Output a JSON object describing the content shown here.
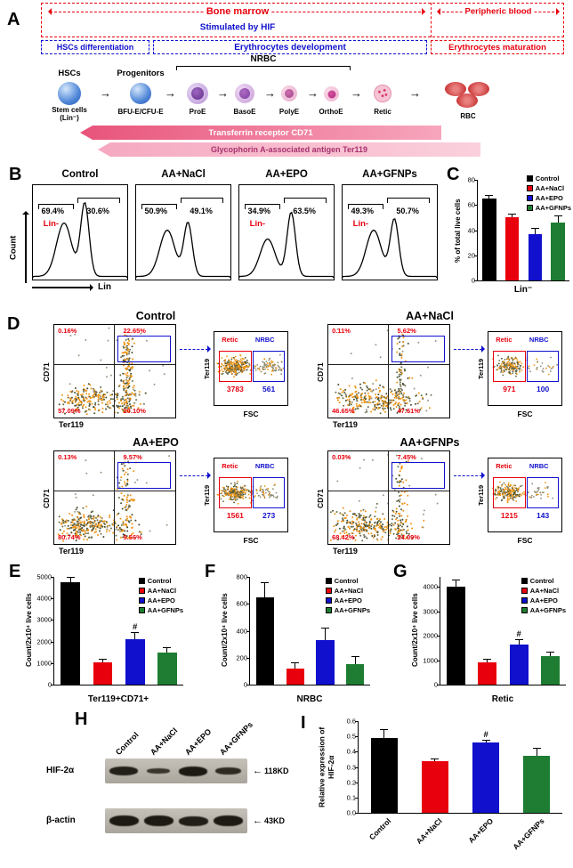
{
  "figure_groups": [
    {
      "name": "Control",
      "color": "#000000"
    },
    {
      "name": "AA+NaCl",
      "color": "#e8000d"
    },
    {
      "name": "AA+EPO",
      "color": "#1010cd"
    },
    {
      "name": "AA+GFNPs",
      "color": "#1e7d32"
    }
  ],
  "panelA": {
    "label": "A",
    "bone_marrow": "Bone marrow",
    "stimulated_by_hif": "Stimulated by HIF",
    "peripheric_blood": "Peripheric blood",
    "box1": "HSCs differentiation",
    "box2": "Erythrocytes development",
    "box3": "Erythrocytes maturation",
    "nrbc": "NRBC",
    "hscs": "HSCs",
    "progenitors": "Progenitors",
    "stem_line1": "Stem cells",
    "stem_line2": "(Lin⁻)",
    "bfu": "BFU-E/CFU-E",
    "proe": "ProE",
    "basoe": "BasoE",
    "polye": "PolyE",
    "orthoe": "OrthoE",
    "retic": "Retic",
    "rbc": "RBC",
    "cd71_arrow": "Transferrin receptor CD71",
    "ter119_arrow": "Glycophorin A-associated antigen Ter119"
  },
  "panelB": {
    "label": "B",
    "ylabel": "Count",
    "xlabel": "Lin",
    "plots": [
      {
        "title": "Control",
        "left_pct": "69.4%",
        "lin": "Lin-",
        "right_pct": "30.6%"
      },
      {
        "title": "AA+NaCl",
        "left_pct": "50.9%",
        "lin": "",
        "right_pct": "49.1%"
      },
      {
        "title": "AA+EPO",
        "left_pct": "34.9%",
        "lin": "Lin-",
        "right_pct": "63.5%"
      },
      {
        "title": "AA+GFNPs",
        "left_pct": "49.3%",
        "lin": "Lin-",
        "right_pct": "50.7%"
      }
    ]
  },
  "panelC": {
    "label": "C"
  },
  "panelD": {
    "label": "D",
    "main_x": "Ter119",
    "main_y": "CD71",
    "inset_x": "FSC",
    "inset_y": "Ter119",
    "retic": "Retic",
    "nrbc": "NRBC",
    "plots": [
      {
        "title": "Control",
        "tl": "0.16%",
        "tr": "22.65%",
        "bl": "57.09%",
        "br": "20.10%",
        "retic_count": "3783",
        "nrbc_count": "561"
      },
      {
        "title": "AA+NaCl",
        "tl": "0.11%",
        "tr": "5.62%",
        "bl": "46.65%",
        "br": "47.61%",
        "retic_count": "971",
        "nrbc_count": "100"
      },
      {
        "title": "AA+EPO",
        "tl": "0.13%",
        "tr": "9.57%",
        "bl": "80.74%",
        "br": "9.56%",
        "retic_count": "1561",
        "nrbc_count": "273"
      },
      {
        "title": "AA+GFNPs",
        "tl": "0.03%",
        "tr": "7.45%",
        "bl": "68.42%",
        "br": "24.09%",
        "retic_count": "1215",
        "nrbc_count": "143"
      }
    ]
  },
  "panelE": {
    "label": "E"
  },
  "panelF": {
    "label": "F"
  },
  "panelG": {
    "label": "G"
  },
  "panelH": {
    "label": "H",
    "rows": [
      {
        "protein": "HIF-2α",
        "kd": "118KD"
      },
      {
        "protein": "β-actin",
        "kd": "43KD"
      }
    ]
  },
  "panelI": {
    "label": "I"
  },
  "chart_data": [
    {
      "id": "C",
      "type": "bar",
      "categories": [
        "Lin⁻"
      ],
      "series": [
        {
          "name": "Control",
          "values": [
            65
          ],
          "errors": [
            3
          ]
        },
        {
          "name": "AA+NaCl",
          "values": [
            50
          ],
          "errors": [
            3
          ]
        },
        {
          "name": "AA+EPO",
          "values": [
            37
          ],
          "errors": [
            5
          ]
        },
        {
          "name": "AA+GFNPs",
          "values": [
            46
          ],
          "errors": [
            6
          ]
        }
      ],
      "ylabel": "% of total live cells",
      "ylim": [
        0,
        80
      ],
      "yticks": [
        0,
        20,
        40,
        60,
        80
      ],
      "ytick_labels": [
        "0",
        "20",
        "40",
        "60",
        "80"
      ],
      "legend": true,
      "hash_series": []
    },
    {
      "id": "E",
      "type": "bar",
      "categories": [
        "Ter119+CD71+"
      ],
      "series": [
        {
          "name": "Control",
          "values": [
            4750
          ],
          "errors": [
            250
          ]
        },
        {
          "name": "AA+NaCl",
          "values": [
            1050
          ],
          "errors": [
            150
          ]
        },
        {
          "name": "AA+EPO",
          "values": [
            2100
          ],
          "errors": [
            350
          ]
        },
        {
          "name": "AA+GFNPs",
          "values": [
            1500
          ],
          "errors": [
            250
          ]
        }
      ],
      "ylabel": "Count/2x10⁴ live cells",
      "ylim": [
        0,
        5000
      ],
      "yticks": [
        0,
        1000,
        2000,
        3000,
        4000,
        5000
      ],
      "ytick_labels": [
        "0",
        "1000",
        "2000",
        "3000",
        "4000",
        "5000"
      ],
      "legend": true,
      "hash_series": [
        2
      ]
    },
    {
      "id": "F",
      "type": "bar",
      "categories": [
        "NRBC"
      ],
      "series": [
        {
          "name": "Control",
          "values": [
            650
          ],
          "errors": [
            110
          ]
        },
        {
          "name": "AA+NaCl",
          "values": [
            120
          ],
          "errors": [
            45
          ]
        },
        {
          "name": "AA+EPO",
          "values": [
            330
          ],
          "errors": [
            90
          ]
        },
        {
          "name": "AA+GFNPs",
          "values": [
            150
          ],
          "errors": [
            60
          ]
        }
      ],
      "ylabel": "Count/2x10⁴ live cells",
      "ylim": [
        0,
        800
      ],
      "yticks": [
        0,
        200,
        400,
        600,
        800
      ],
      "ytick_labels": [
        "0",
        "200",
        "400",
        "600",
        "800"
      ],
      "legend": true,
      "hash_series": []
    },
    {
      "id": "G",
      "type": "bar",
      "categories": [
        "Retic"
      ],
      "series": [
        {
          "name": "Control",
          "values": [
            4000
          ],
          "errors": [
            280
          ]
        },
        {
          "name": "AA+NaCl",
          "values": [
            900
          ],
          "errors": [
            160
          ]
        },
        {
          "name": "AA+EPO",
          "values": [
            1650
          ],
          "errors": [
            220
          ]
        },
        {
          "name": "AA+GFNPs",
          "values": [
            1150
          ],
          "errors": [
            180
          ]
        }
      ],
      "ylabel": "Count/2x10⁴ live cells",
      "ylim": [
        0,
        4400
      ],
      "yticks": [
        0,
        1000,
        2000,
        3000,
        4000
      ],
      "ytick_labels": [
        "0",
        "1000",
        "2000",
        "3000",
        "4000"
      ],
      "legend": true,
      "hash_series": [
        2
      ]
    },
    {
      "id": "I",
      "type": "bar",
      "categories": [
        "Control",
        "AA+NaCl",
        "AA+EPO",
        "AA+GFNPs"
      ],
      "series": [
        {
          "name": "Control",
          "values": [
            0.49
          ],
          "errors": [
            0.06
          ]
        },
        {
          "name": "AA+NaCl",
          "values": [
            0.34
          ],
          "errors": [
            0.015
          ]
        },
        {
          "name": "AA+EPO",
          "values": [
            0.46
          ],
          "errors": [
            0.02
          ]
        },
        {
          "name": "AA+GFNPs",
          "values": [
            0.37
          ],
          "errors": [
            0.055
          ]
        }
      ],
      "ylabel": "Relative expression of HIF-2α",
      "ylim": [
        0,
        0.6
      ],
      "yticks": [
        0,
        0.1,
        0.2,
        0.3,
        0.4,
        0.5,
        0.6
      ],
      "ytick_labels": [
        "0.0",
        "0.1",
        "0.2",
        "0.3",
        "0.4",
        "0.5",
        "0.6"
      ],
      "legend": false,
      "hash_series": [
        2
      ],
      "xlabels_from_series": true
    }
  ]
}
